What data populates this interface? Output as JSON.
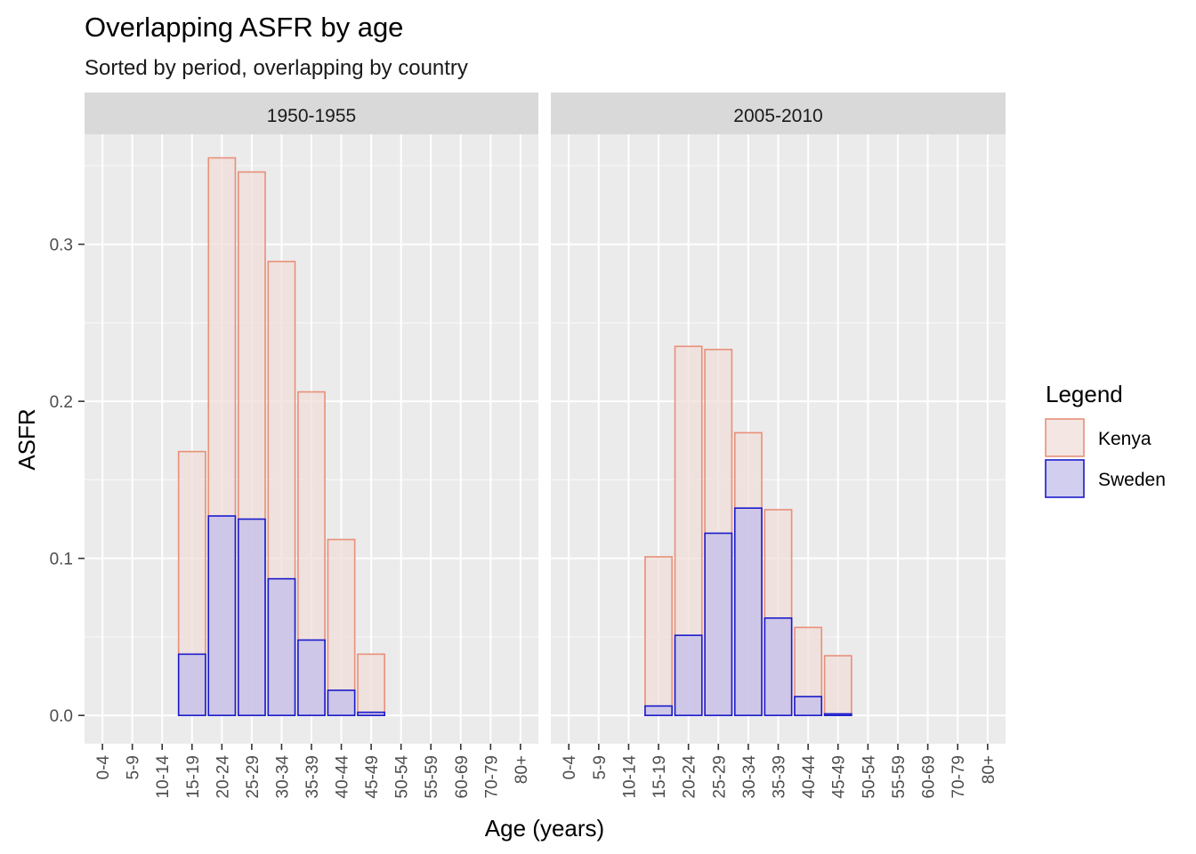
{
  "chart_data": {
    "type": "bar",
    "title": "Overlapping ASFR by age",
    "subtitle": "Sorted by period, overlapping by country",
    "xlabel": "Age (years)",
    "ylabel": "ASFR",
    "ylim": [
      -0.018,
      0.37
    ],
    "yticks": [
      0.0,
      0.1,
      0.2,
      0.3
    ],
    "ytick_labels": [
      "0.0",
      "0.1",
      "0.2",
      "0.3"
    ],
    "grid": true,
    "bar_mode": "overlay",
    "legend_title": "Legend",
    "legend_position": "right",
    "categories": [
      "0-4",
      "5-9",
      "10-14",
      "15-19",
      "20-24",
      "25-29",
      "30-34",
      "35-39",
      "40-44",
      "45-49",
      "50-54",
      "55-59",
      "60-69",
      "70-79",
      "80+"
    ],
    "series_styles": [
      {
        "name": "Kenya",
        "fill": "#f0ddd8",
        "stroke": "#e8907a"
      },
      {
        "name": "Sweden",
        "fill": "#c3bdea",
        "stroke": "#1a1acc"
      }
    ],
    "facets": [
      {
        "label": "1950-1955",
        "series": [
          {
            "name": "Kenya",
            "values": [
              0,
              0,
              0,
              0.168,
              0.355,
              0.346,
              0.289,
              0.206,
              0.112,
              0.039,
              0,
              0,
              0,
              0,
              0
            ]
          },
          {
            "name": "Sweden",
            "values": [
              0,
              0,
              0,
              0.039,
              0.127,
              0.125,
              0.087,
              0.048,
              0.016,
              0.002,
              0,
              0,
              0,
              0,
              0
            ]
          }
        ]
      },
      {
        "label": "2005-2010",
        "series": [
          {
            "name": "Kenya",
            "values": [
              0,
              0,
              0,
              0.101,
              0.235,
              0.233,
              0.18,
              0.131,
              0.056,
              0.038,
              0,
              0,
              0,
              0,
              0
            ]
          },
          {
            "name": "Sweden",
            "values": [
              0,
              0,
              0,
              0.006,
              0.051,
              0.116,
              0.132,
              0.062,
              0.012,
              0.001,
              0,
              0,
              0,
              0,
              0
            ]
          }
        ]
      }
    ],
    "colors": {
      "panel_background": "#ebebeb",
      "strip_background": "#d9d9d9",
      "grid_major": "#ffffff",
      "grid_minor": "#f7f7f7",
      "tick": "#333333"
    }
  }
}
